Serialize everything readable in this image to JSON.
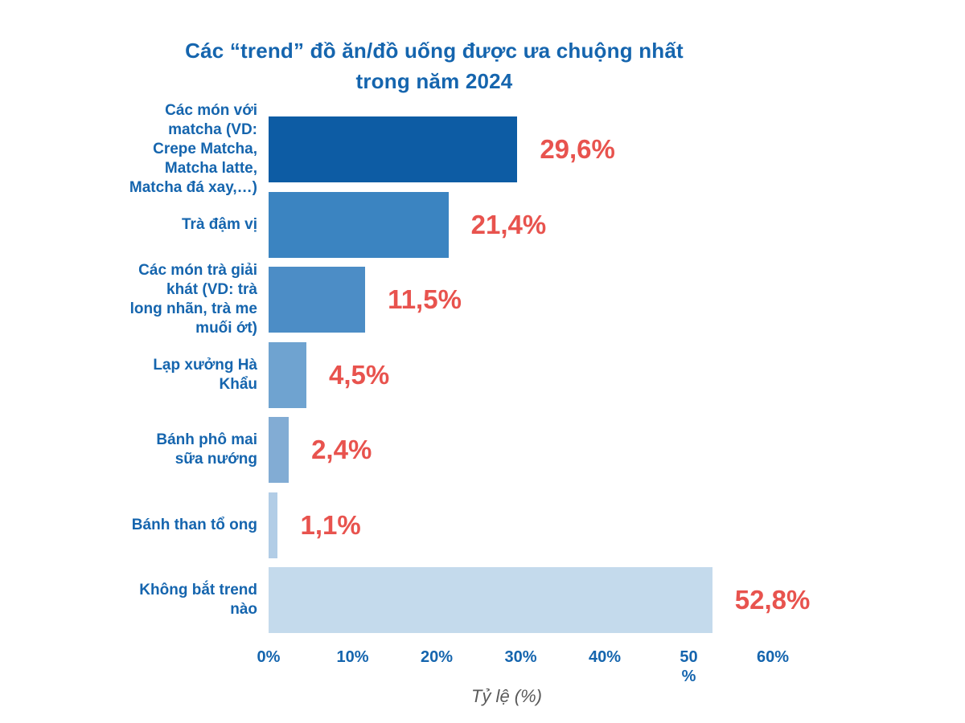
{
  "chart_data": {
    "type": "bar",
    "orientation": "horizontal",
    "title": "Các “trend” đồ ăn/đồ uống được ưa chuộng nhất trong năm 2024",
    "title_lines": [
      "Các “trend” đồ ăn/đồ uống được ưa chuộng nhất",
      "trong năm 2024"
    ],
    "categories": [
      {
        "label": "Các món với matcha (VD: Crepe Matcha, Matcha latte, Matcha đá xay,…)",
        "lines": [
          "Các món với",
          "matcha (VD:",
          "Crepe Matcha,",
          "Matcha latte,",
          "Matcha đá xay,…)"
        ]
      },
      {
        "label": "Trà đậm vị",
        "lines": [
          "Trà đậm vị"
        ]
      },
      {
        "label": "Các món trà giải khát (VD: trà long nhãn, trà me muối ớt)",
        "lines": [
          "Các món trà giải",
          "khát (VD: trà",
          "long nhãn, trà me",
          "muối ớt)"
        ]
      },
      {
        "label": "Lạp xưởng Hà Khẩu",
        "lines": [
          "Lạp xưởng Hà",
          "Khẩu"
        ]
      },
      {
        "label": "Bánh phô mai sữa nướng",
        "lines": [
          "Bánh phô mai",
          "sữa nướng"
        ]
      },
      {
        "label": "Bánh than tổ ong",
        "lines": [
          "Bánh than tổ ong"
        ]
      },
      {
        "label": "Không bắt trend nào",
        "lines": [
          "Không bắt trend",
          "nào"
        ]
      }
    ],
    "values": [
      29.6,
      21.4,
      11.5,
      4.5,
      2.4,
      1.1,
      52.8
    ],
    "value_labels": [
      "29,6%",
      "21,4%",
      "11,5%",
      "4,5%",
      "2,4%",
      "1,1%",
      "52,8%"
    ],
    "bar_colors": [
      "#0D5CA4",
      "#3B84C1",
      "#4C8DC6",
      "#6FA3D0",
      "#82ACD4",
      "#B2CDE6",
      "#C4DAEC"
    ],
    "x_ticks": [
      {
        "value": 0,
        "label": "0%"
      },
      {
        "value": 10,
        "label": "10%"
      },
      {
        "value": 20,
        "label": "20%"
      },
      {
        "value": 30,
        "label": "30%"
      },
      {
        "value": 40,
        "label": "40%"
      },
      {
        "value": 50,
        "label": "50\n%"
      },
      {
        "value": 60,
        "label": "60%"
      }
    ],
    "xlabel": "Tỷ lệ (%)",
    "xlim": [
      0,
      60
    ],
    "grid": false,
    "legend": false,
    "colors": {
      "heading": "#1565AE",
      "category": "#1565AE",
      "value": "#E8534E",
      "tick": "#1565AE",
      "axis_label": "#5A5A5A",
      "background": "#FFFFFF"
    }
  }
}
